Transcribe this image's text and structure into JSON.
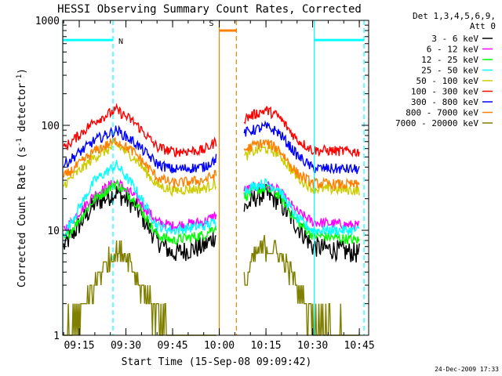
{
  "chart_data": {
    "type": "line",
    "title": "HESSI Observing Summary Count Rates, Corrected",
    "xlabel": "Start Time (15-Sep-08 09:09:42)",
    "ylabel": "Corrected Count Rate (s⁻¹ detector⁻¹)",
    "ylabel_main": "Corrected Count Rate (s",
    "ylabel_sup1": "-1",
    "ylabel_mid": " detector",
    "ylabel_sup2": "-1",
    "ylabel_end": ")",
    "yscale": "log",
    "ylim": [
      1,
      1000
    ],
    "xlim": [
      "09:09:42",
      "10:48:00"
    ],
    "yticks": [
      "1",
      "10",
      "100",
      "1000"
    ],
    "xticks": [
      "09:15",
      "09:30",
      "09:45",
      "10:00",
      "10:15",
      "10:30",
      "10:45"
    ],
    "legend_header": [
      "Det 1,3,4,5,6,9,",
      "Att 0"
    ],
    "legend_position": "right",
    "series": [
      {
        "name": "3 - 6 keV",
        "color": "#000000",
        "segment1": [
          [
            "09:10",
            7
          ],
          [
            "09:20",
            18
          ],
          [
            "09:27",
            23
          ],
          [
            "09:33",
            17
          ],
          [
            "09:40",
            8
          ],
          [
            "09:45",
            6
          ],
          [
            "09:55",
            7
          ],
          [
            "09:59",
            9
          ]
        ],
        "segment2": [
          [
            "10:08",
            16
          ],
          [
            "10:12",
            21
          ],
          [
            "10:15",
            22
          ],
          [
            "10:19",
            19
          ],
          [
            "10:25",
            11
          ],
          [
            "10:30",
            7
          ],
          [
            "10:45",
            6
          ]
        ]
      },
      {
        "name": "6 - 12 keV",
        "color": "#ff00ff",
        "segment1": [
          [
            "09:10",
            10
          ],
          [
            "09:20",
            22
          ],
          [
            "09:27",
            29
          ],
          [
            "09:33",
            21
          ],
          [
            "09:40",
            12
          ],
          [
            "09:45",
            11
          ],
          [
            "09:55",
            12
          ],
          [
            "09:59",
            14
          ]
        ],
        "segment2": [
          [
            "10:08",
            24
          ],
          [
            "10:12",
            26
          ],
          [
            "10:15",
            27
          ],
          [
            "10:19",
            24
          ],
          [
            "10:25",
            15
          ],
          [
            "10:30",
            12
          ],
          [
            "10:45",
            11
          ]
        ]
      },
      {
        "name": "12 - 25 keV",
        "color": "#00ff00",
        "segment1": [
          [
            "09:10",
            8
          ],
          [
            "09:20",
            20
          ],
          [
            "09:27",
            28
          ],
          [
            "09:33",
            19
          ],
          [
            "09:40",
            9
          ],
          [
            "09:45",
            8
          ],
          [
            "09:55",
            9
          ],
          [
            "09:59",
            11
          ]
        ],
        "segment2": [
          [
            "10:08",
            21
          ],
          [
            "10:12",
            24
          ],
          [
            "10:15",
            25
          ],
          [
            "10:19",
            22
          ],
          [
            "10:25",
            12
          ],
          [
            "10:30",
            9
          ],
          [
            "10:45",
            8
          ]
        ]
      },
      {
        "name": "25 - 50 keV",
        "color": "#00ffff",
        "segment1": [
          [
            "09:10",
            9
          ],
          [
            "09:20",
            30
          ],
          [
            "09:27",
            42
          ],
          [
            "09:33",
            25
          ],
          [
            "09:40",
            11
          ],
          [
            "09:45",
            10
          ],
          [
            "09:55",
            11
          ],
          [
            "09:59",
            12
          ]
        ],
        "segment2": [
          [
            "10:08",
            24
          ],
          [
            "10:12",
            27
          ],
          [
            "10:15",
            28
          ],
          [
            "10:19",
            25
          ],
          [
            "10:25",
            13
          ],
          [
            "10:30",
            10
          ],
          [
            "10:45",
            10
          ]
        ]
      },
      {
        "name": "50 - 100 keV",
        "color": "#cccc00",
        "segment1": [
          [
            "09:10",
            27
          ],
          [
            "09:20",
            50
          ],
          [
            "09:27",
            65
          ],
          [
            "09:33",
            48
          ],
          [
            "09:40",
            27
          ],
          [
            "09:45",
            24
          ],
          [
            "09:55",
            25
          ],
          [
            "09:59",
            28
          ]
        ],
        "segment2": [
          [
            "10:08",
            50
          ],
          [
            "10:12",
            58
          ],
          [
            "10:15",
            60
          ],
          [
            "10:19",
            54
          ],
          [
            "10:25",
            32
          ],
          [
            "10:30",
            25
          ],
          [
            "10:45",
            24
          ]
        ]
      },
      {
        "name": "100 - 300 keV",
        "color": "#ff0000",
        "segment1": [
          [
            "09:10",
            60
          ],
          [
            "09:20",
            110
          ],
          [
            "09:27",
            140
          ],
          [
            "09:33",
            105
          ],
          [
            "09:40",
            62
          ],
          [
            "09:45",
            56
          ],
          [
            "09:55",
            58
          ],
          [
            "09:59",
            70
          ]
        ],
        "segment2": [
          [
            "10:08",
            115
          ],
          [
            "10:12",
            130
          ],
          [
            "10:15",
            140
          ],
          [
            "10:19",
            122
          ],
          [
            "10:25",
            73
          ],
          [
            "10:30",
            58
          ],
          [
            "10:45",
            56
          ]
        ]
      },
      {
        "name": "300 - 800 keV",
        "color": "#0000ff",
        "segment1": [
          [
            "09:10",
            42
          ],
          [
            "09:20",
            72
          ],
          [
            "09:27",
            90
          ],
          [
            "09:33",
            68
          ],
          [
            "09:40",
            43
          ],
          [
            "09:45",
            38
          ],
          [
            "09:55",
            40
          ],
          [
            "09:59",
            48
          ]
        ],
        "segment2": [
          [
            "10:08",
            85
          ],
          [
            "10:12",
            92
          ],
          [
            "10:15",
            97
          ],
          [
            "10:19",
            86
          ],
          [
            "10:25",
            52
          ],
          [
            "10:30",
            39
          ],
          [
            "10:45",
            38
          ]
        ]
      },
      {
        "name": "800 - 7000 keV",
        "color": "#ff8000",
        "segment1": [
          [
            "09:10",
            32
          ],
          [
            "09:20",
            57
          ],
          [
            "09:27",
            72
          ],
          [
            "09:33",
            54
          ],
          [
            "09:40",
            32
          ],
          [
            "09:45",
            28
          ],
          [
            "09:55",
            30
          ],
          [
            "09:59",
            34
          ]
        ],
        "segment2": [
          [
            "10:08",
            58
          ],
          [
            "10:12",
            66
          ],
          [
            "10:15",
            68
          ],
          [
            "10:19",
            60
          ],
          [
            "10:25",
            35
          ],
          [
            "10:30",
            28
          ],
          [
            "10:45",
            27
          ]
        ]
      },
      {
        "name": "7000 - 20000 keV",
        "color": "#808000",
        "segment1": [
          [
            "09:10",
            1
          ],
          [
            "09:17",
            2
          ],
          [
            "09:22",
            4
          ],
          [
            "09:26",
            6
          ],
          [
            "09:30",
            6
          ],
          [
            "09:35",
            3
          ],
          [
            "09:40",
            1.5
          ],
          [
            "09:45",
            1
          ],
          [
            "09:59",
            1
          ]
        ],
        "segment2": [
          [
            "10:08",
            3
          ],
          [
            "10:12",
            6
          ],
          [
            "10:15",
            7
          ],
          [
            "10:19",
            6
          ],
          [
            "10:25",
            3
          ],
          [
            "10:30",
            1.5
          ],
          [
            "10:45",
            1
          ]
        ]
      }
    ],
    "markers": [
      {
        "label": "N",
        "color": "#00ffff",
        "intervals": [
          [
            "09:09:42",
            "09:25:50"
          ],
          [
            "10:30:30",
            "10:46:30"
          ]
        ],
        "level": 650
      },
      {
        "label": "S",
        "color": "#ff8000",
        "intervals": [
          [
            "10:00:00",
            "10:05:30"
          ]
        ],
        "level": 800
      }
    ],
    "vertical_lines": [
      {
        "time": "09:09:42",
        "color": "#00ffff",
        "style": "solid"
      },
      {
        "time": "09:25:50",
        "color": "#00ffff",
        "style": "dashed"
      },
      {
        "time": "10:00:00",
        "color": "#ff8000",
        "style": "solid"
      },
      {
        "time": "10:05:30",
        "color": "#ff8000",
        "style": "dashed"
      },
      {
        "time": "10:30:30",
        "color": "#00ffff",
        "style": "solid"
      },
      {
        "time": "10:46:30",
        "color": "#00ffff",
        "style": "dashed"
      }
    ],
    "footer_date": "24-Dec-2009 17:33"
  }
}
